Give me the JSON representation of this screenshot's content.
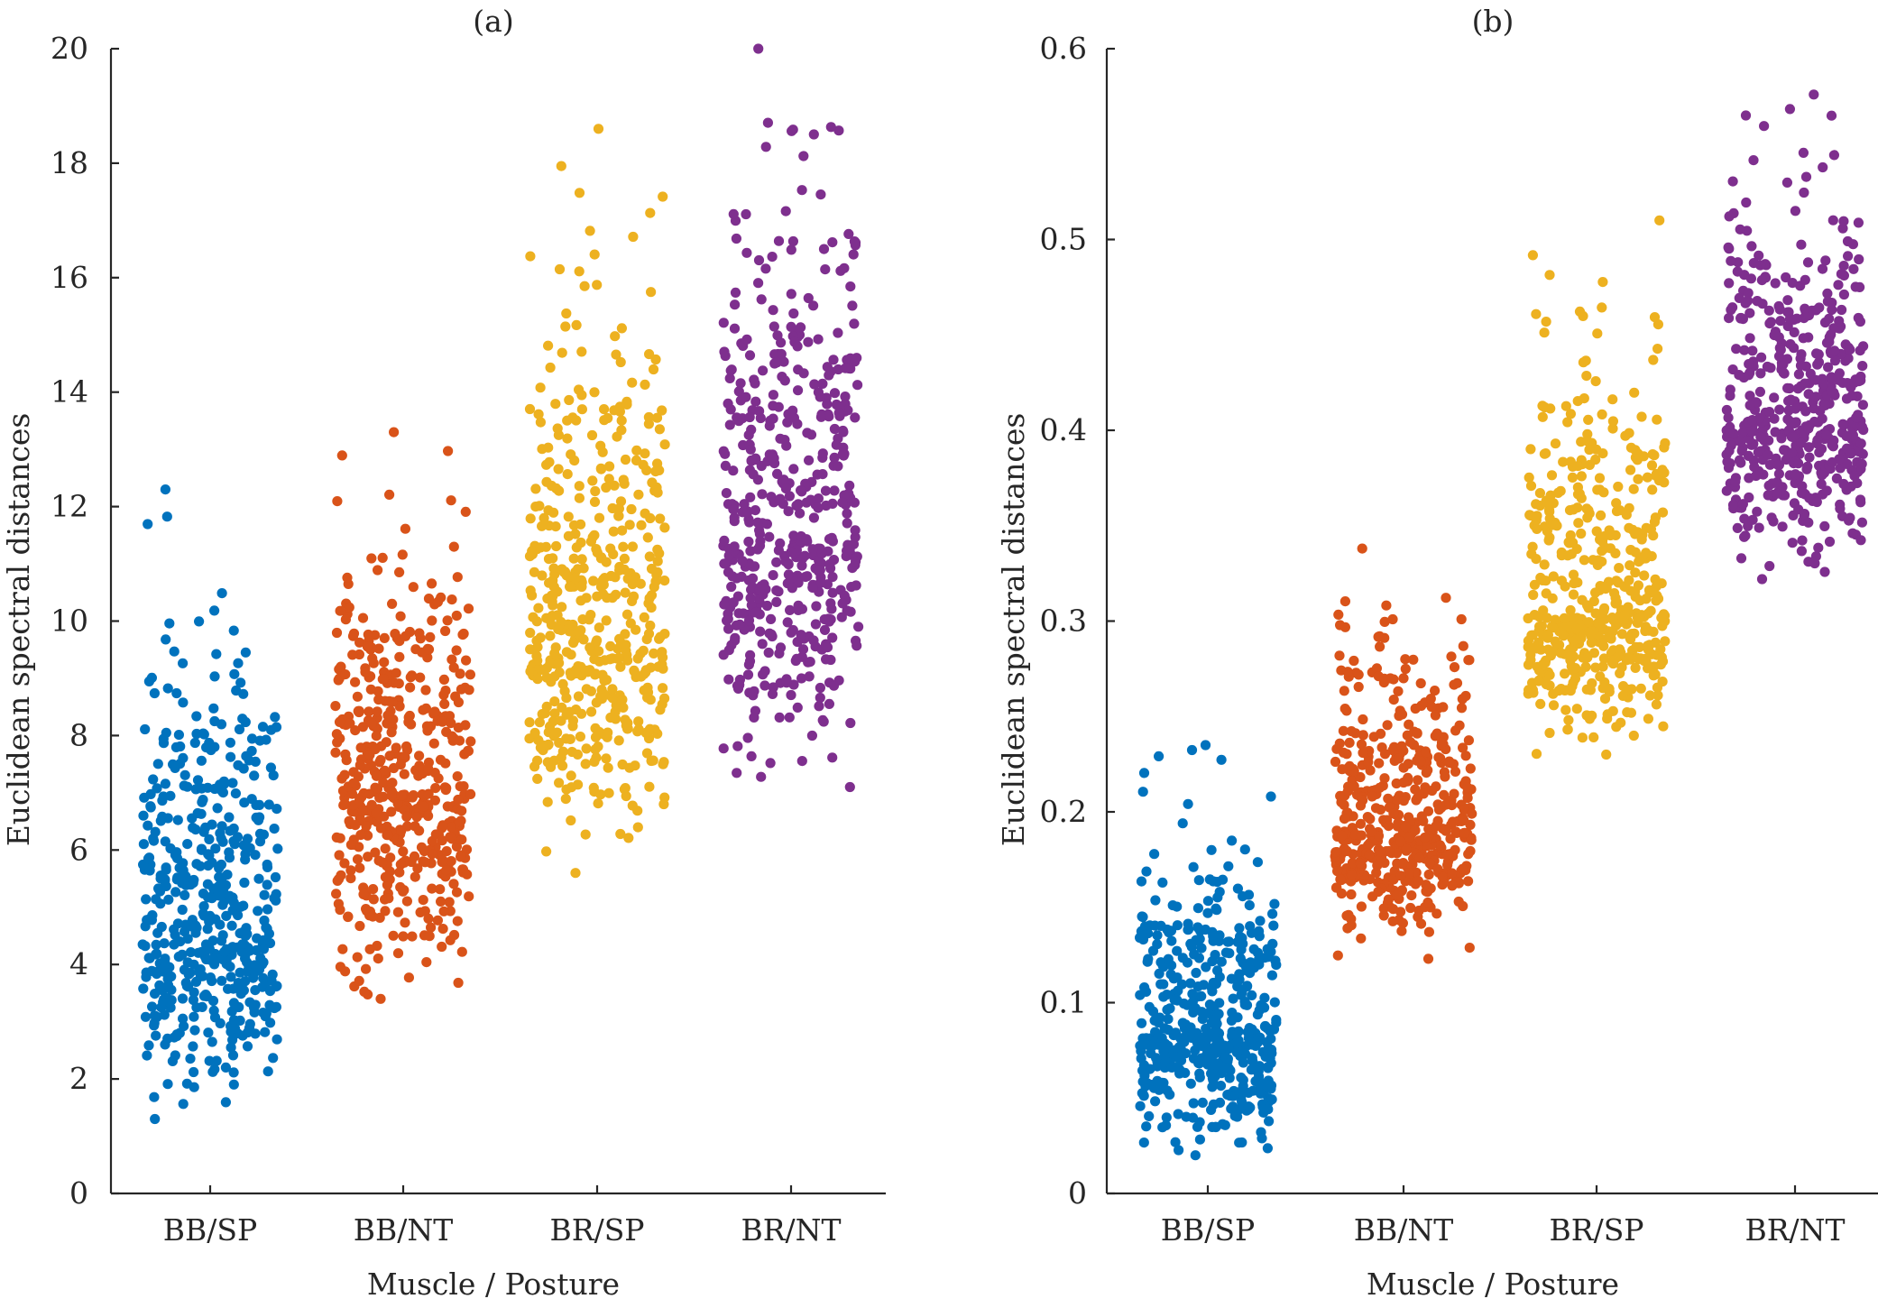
{
  "chart_data": [
    {
      "type": "scatter",
      "title": "(a)",
      "xlabel": "Muscle / Posture",
      "ylabel": "Euclidean spectral distances",
      "categories": [
        "BB/SP",
        "BB/NT",
        "BR/SP",
        "BR/NT"
      ],
      "ylim": [
        0,
        20
      ],
      "yticks": [
        0,
        2,
        4,
        6,
        8,
        10,
        12,
        14,
        16,
        18,
        20
      ],
      "ytick_labels": [
        "0",
        "2",
        "4",
        "6",
        "8",
        "10",
        "12",
        "14",
        "16",
        "18",
        "20"
      ],
      "grid": false,
      "series": [
        {
          "name": "BB/SP",
          "color": "#0072BD",
          "median": 4.7,
          "min": 1.3,
          "max": 12.3,
          "n": 500,
          "jitter": 0.35
        },
        {
          "name": "BB/NT",
          "color": "#D95319",
          "median": 7.0,
          "min": 3.4,
          "max": 13.3,
          "n": 500,
          "jitter": 0.35
        },
        {
          "name": "BR/SP",
          "color": "#EDB120",
          "median": 9.7,
          "min": 5.6,
          "max": 18.6,
          "n": 500,
          "jitter": 0.35
        },
        {
          "name": "BR/NT",
          "color": "#7E2F8E",
          "median": 11.5,
          "min": 7.1,
          "max": 20.0,
          "n": 500,
          "jitter": 0.35
        }
      ]
    },
    {
      "type": "scatter",
      "title": "(b)",
      "xlabel": "Muscle / Posture",
      "ylabel": "Euclidean spectral distances",
      "categories": [
        "BB/SP",
        "BB/NT",
        "BR/SP",
        "BR/NT"
      ],
      "ylim": [
        0,
        0.6
      ],
      "yticks": [
        0,
        0.1,
        0.2,
        0.3,
        0.4,
        0.5,
        0.6
      ],
      "ytick_labels": [
        "0",
        "0.1",
        "0.2",
        "0.3",
        "0.4",
        "0.5",
        "0.6"
      ],
      "grid": false,
      "series": [
        {
          "name": "BB/SP",
          "color": "#0072BD",
          "median": 0.085,
          "min": 0.02,
          "max": 0.235,
          "n": 500,
          "jitter": 0.35
        },
        {
          "name": "BB/NT",
          "color": "#D95319",
          "median": 0.19,
          "min": 0.123,
          "max": 0.338,
          "n": 500,
          "jitter": 0.35
        },
        {
          "name": "BR/SP",
          "color": "#EDB120",
          "median": 0.305,
          "min": 0.23,
          "max": 0.51,
          "n": 500,
          "jitter": 0.35
        },
        {
          "name": "BR/NT",
          "color": "#7E2F8E",
          "median": 0.405,
          "min": 0.322,
          "max": 0.576,
          "n": 500,
          "jitter": 0.35
        }
      ]
    }
  ]
}
